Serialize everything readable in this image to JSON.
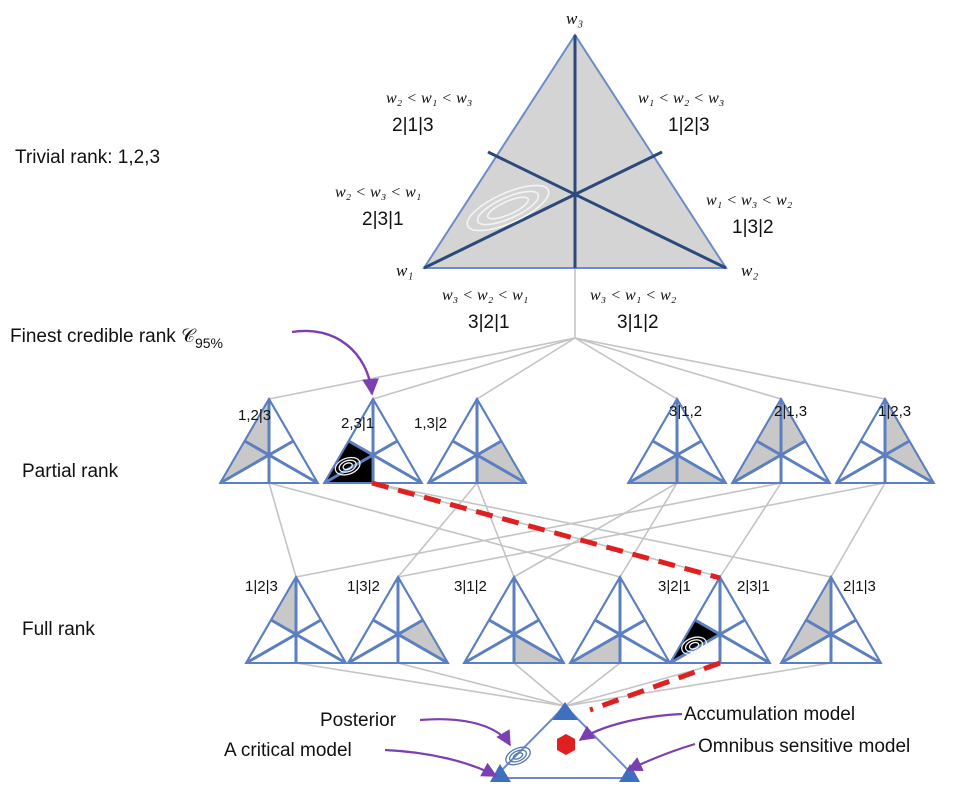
{
  "level_labels": {
    "trivial": "Trivial rank: 1,2,3",
    "finest": "Finest credible rank 𝒞",
    "finest_sub": "95%",
    "partial": "Partial rank",
    "full": "Full rank"
  },
  "top_triangle": {
    "vertices": {
      "top": "w₃",
      "left": "w₁",
      "right": "w₂"
    },
    "regions": [
      {
        "inequality": "w₂ < w₁ < w₃",
        "rank": "2|1|3"
      },
      {
        "inequality": "w₁ < w₂ < w₃",
        "rank": "1|2|3"
      },
      {
        "inequality": "w₂ < w₃ < w₁",
        "rank": "2|3|1"
      },
      {
        "inequality": "w₁ < w₃ < w₂",
        "rank": "1|3|2"
      },
      {
        "inequality": "w₃ < w₂ < w₁",
        "rank": "3|2|1"
      },
      {
        "inequality": "w₃ < w₁ < w₂",
        "rank": "3|1|2"
      }
    ]
  },
  "partial_ranks": [
    "1,2|3",
    "2,3|1",
    "1,3|2",
    "3|1,2",
    "2|1,3",
    "1|2,3"
  ],
  "full_ranks": [
    "1|2|3",
    "1|3|2",
    "3|1|2",
    "3|2|1",
    "2|3|1",
    "2|1|3"
  ],
  "bottom_annotations": {
    "posterior": "Posterior",
    "critical": "A critical model",
    "accumulation": "Accumulation model",
    "omnibus": "Omnibus sensitive model"
  },
  "colors": {
    "edge_blue": "#5b7fc0",
    "divider_navy": "#2b4a7a",
    "fill_gray": "#c8c8c8",
    "region_black": "#000000",
    "link_gray": "#c4c4c4",
    "dashed_red": "#e02020",
    "arrow_purple": "#7b3fb0",
    "hexagon_red": "#e02020"
  }
}
